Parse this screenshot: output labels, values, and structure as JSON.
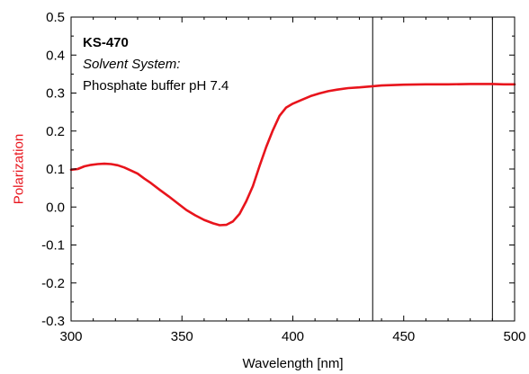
{
  "chart_data": {
    "type": "line",
    "title": "",
    "xlabel": "Wavelength [nm]",
    "ylabel": "Polarization",
    "xlim": [
      300,
      500
    ],
    "ylim": [
      -0.3,
      0.5
    ],
    "grid": false,
    "legend": "none",
    "x_ticks": [
      300,
      350,
      400,
      450,
      500
    ],
    "x_tick_labels": [
      "300",
      "350",
      "400",
      "450",
      "500"
    ],
    "y_ticks": [
      -0.3,
      -0.2,
      -0.1,
      0.0,
      0.1,
      0.2,
      0.3,
      0.4,
      0.5
    ],
    "y_tick_labels": [
      "-0.3",
      "-0.2",
      "-0.1",
      "0.0",
      "0.1",
      "0.2",
      "0.3",
      "0.4",
      "0.5"
    ],
    "annotations": {
      "compound": "KS-470",
      "solvent_label": "Solvent System:",
      "solvent_value": "Phosphate buffer pH 7.4"
    },
    "vertical_lines": [
      436,
      490
    ],
    "colors": {
      "series": "#e8141c",
      "ylabel": "#e8141c",
      "axes": "#000000",
      "vlines": "#000000"
    },
    "series": [
      {
        "x": [
          300,
          303,
          306,
          309,
          312,
          315,
          318,
          321,
          324,
          327,
          330,
          333,
          336,
          340,
          344,
          348,
          352,
          356,
          360,
          364,
          367,
          370,
          373,
          376,
          379,
          382,
          385,
          388,
          391,
          394,
          397,
          400,
          404,
          408,
          412,
          416,
          420,
          425,
          430,
          436,
          440,
          450,
          460,
          470,
          480,
          490,
          495,
          500
        ],
        "y": [
          0.098,
          0.1,
          0.107,
          0.111,
          0.113,
          0.114,
          0.113,
          0.11,
          0.104,
          0.096,
          0.088,
          0.075,
          0.063,
          0.045,
          0.028,
          0.01,
          -0.008,
          -0.022,
          -0.034,
          -0.043,
          -0.048,
          -0.047,
          -0.038,
          -0.018,
          0.015,
          0.055,
          0.108,
          0.158,
          0.202,
          0.24,
          0.262,
          0.272,
          0.282,
          0.292,
          0.299,
          0.305,
          0.309,
          0.313,
          0.315,
          0.318,
          0.32,
          0.322,
          0.323,
          0.323,
          0.324,
          0.324,
          0.323,
          0.323
        ]
      }
    ]
  }
}
